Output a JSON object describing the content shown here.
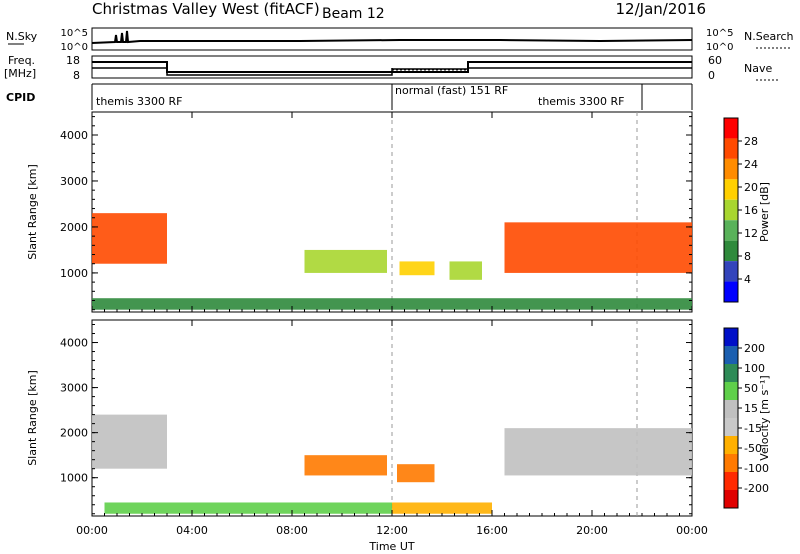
{
  "header": {
    "title": "Christmas Valley West (fitACF)",
    "beam": "Beam 12",
    "date": "12/Jan/2016"
  },
  "colors": {
    "power": [
      "#0000ff",
      "#3344bb",
      "#2f8a3c",
      "#59b25a",
      "#a8d630",
      "#ffd000",
      "#ff8c00",
      "#ff4a00",
      "#ff0000"
    ],
    "velocity": [
      "#0010c8",
      "#1b5fb0",
      "#2e8b57",
      "#5fcf4a",
      "#c0c0c0",
      "#c9c9c9",
      "#ffb000",
      "#ff7a00",
      "#ff2a00",
      "#e00000"
    ]
  },
  "top_panels": {
    "nsky_label": "N.Sky",
    "nsky_ticks": [
      "10^5",
      "10^0"
    ],
    "nsearch_label": "N.Search",
    "nsearch_ticks": [
      "10^5",
      "10^0"
    ],
    "freq_label": "Freq.",
    "freq_unit": "[MHz]",
    "freq_ticks": [
      "18",
      "8"
    ],
    "nave_label": "Nave",
    "nave_ticks": [
      "60",
      "0"
    ],
    "cpid_label": "CPID",
    "cpid_segments": [
      {
        "label": "themis 3300 RF",
        "start": 0,
        "end": 12
      },
      {
        "label": "normal (fast) 151 RF",
        "start": 12,
        "end": 16
      },
      {
        "label": "themis 3300 RF",
        "start": 16,
        "end": 21.8
      }
    ]
  },
  "chart_data": [
    {
      "type": "heatmap",
      "name_hint": "power",
      "ylabel": "Slant Range [km]",
      "yticks": [
        "1000",
        "2000",
        "3000",
        "4000"
      ],
      "ylim": [
        150,
        4500
      ],
      "xlim": [
        0,
        24
      ],
      "xticks": [
        "00:00",
        "04:00",
        "08:00",
        "12:00",
        "16:00",
        "20:00",
        "00:00"
      ],
      "colorbar_label": "Power [dB]",
      "colorbar_ticks": [
        "4",
        "8",
        "12",
        "16",
        "20",
        "24",
        "28"
      ],
      "regions": [
        {
          "t0": 0.0,
          "t1": 3.0,
          "r0": 1200,
          "r1": 2300,
          "value": 28
        },
        {
          "t0": 8.5,
          "t1": 11.8,
          "r0": 1000,
          "r1": 1500,
          "value": 16
        },
        {
          "t0": 12.3,
          "t1": 13.7,
          "r0": 950,
          "r1": 1250,
          "value": 20
        },
        {
          "t0": 14.3,
          "t1": 15.6,
          "r0": 850,
          "r1": 1250,
          "value": 16
        },
        {
          "t0": 16.5,
          "t1": 24.0,
          "r0": 1000,
          "r1": 2100,
          "value": 28
        },
        {
          "t0": 0.0,
          "t1": 24.0,
          "r0": 200,
          "r1": 450,
          "value": 8
        }
      ]
    },
    {
      "type": "heatmap",
      "name_hint": "velocity",
      "ylabel": "Slant Range [km]",
      "yticks": [
        "1000",
        "2000",
        "3000",
        "4000"
      ],
      "ylim": [
        150,
        4500
      ],
      "xlim": [
        0,
        24
      ],
      "xticks": [
        "00:00",
        "04:00",
        "08:00",
        "12:00",
        "16:00",
        "20:00",
        "00:00"
      ],
      "xlabel": "Time UT",
      "colorbar_label": "Velocity [m s⁻¹]",
      "colorbar_ticks": [
        "200",
        "100",
        "50",
        "15",
        "-15",
        "-50",
        "-100",
        "-200"
      ],
      "regions": [
        {
          "t0": 0.0,
          "t1": 3.0,
          "r0": 1200,
          "r1": 2400,
          "value": 0
        },
        {
          "t0": 8.5,
          "t1": 11.8,
          "r0": 1050,
          "r1": 1500,
          "value": -80
        },
        {
          "t0": 12.2,
          "t1": 13.7,
          "r0": 900,
          "r1": 1300,
          "value": -80
        },
        {
          "t0": 16.5,
          "t1": 24.0,
          "r0": 1050,
          "r1": 2100,
          "value": 0
        },
        {
          "t0": 0.5,
          "t1": 12.0,
          "r0": 200,
          "r1": 450,
          "value": 30
        },
        {
          "t0": 12.0,
          "t1": 16.0,
          "r0": 200,
          "r1": 450,
          "value": -60
        }
      ]
    }
  ]
}
